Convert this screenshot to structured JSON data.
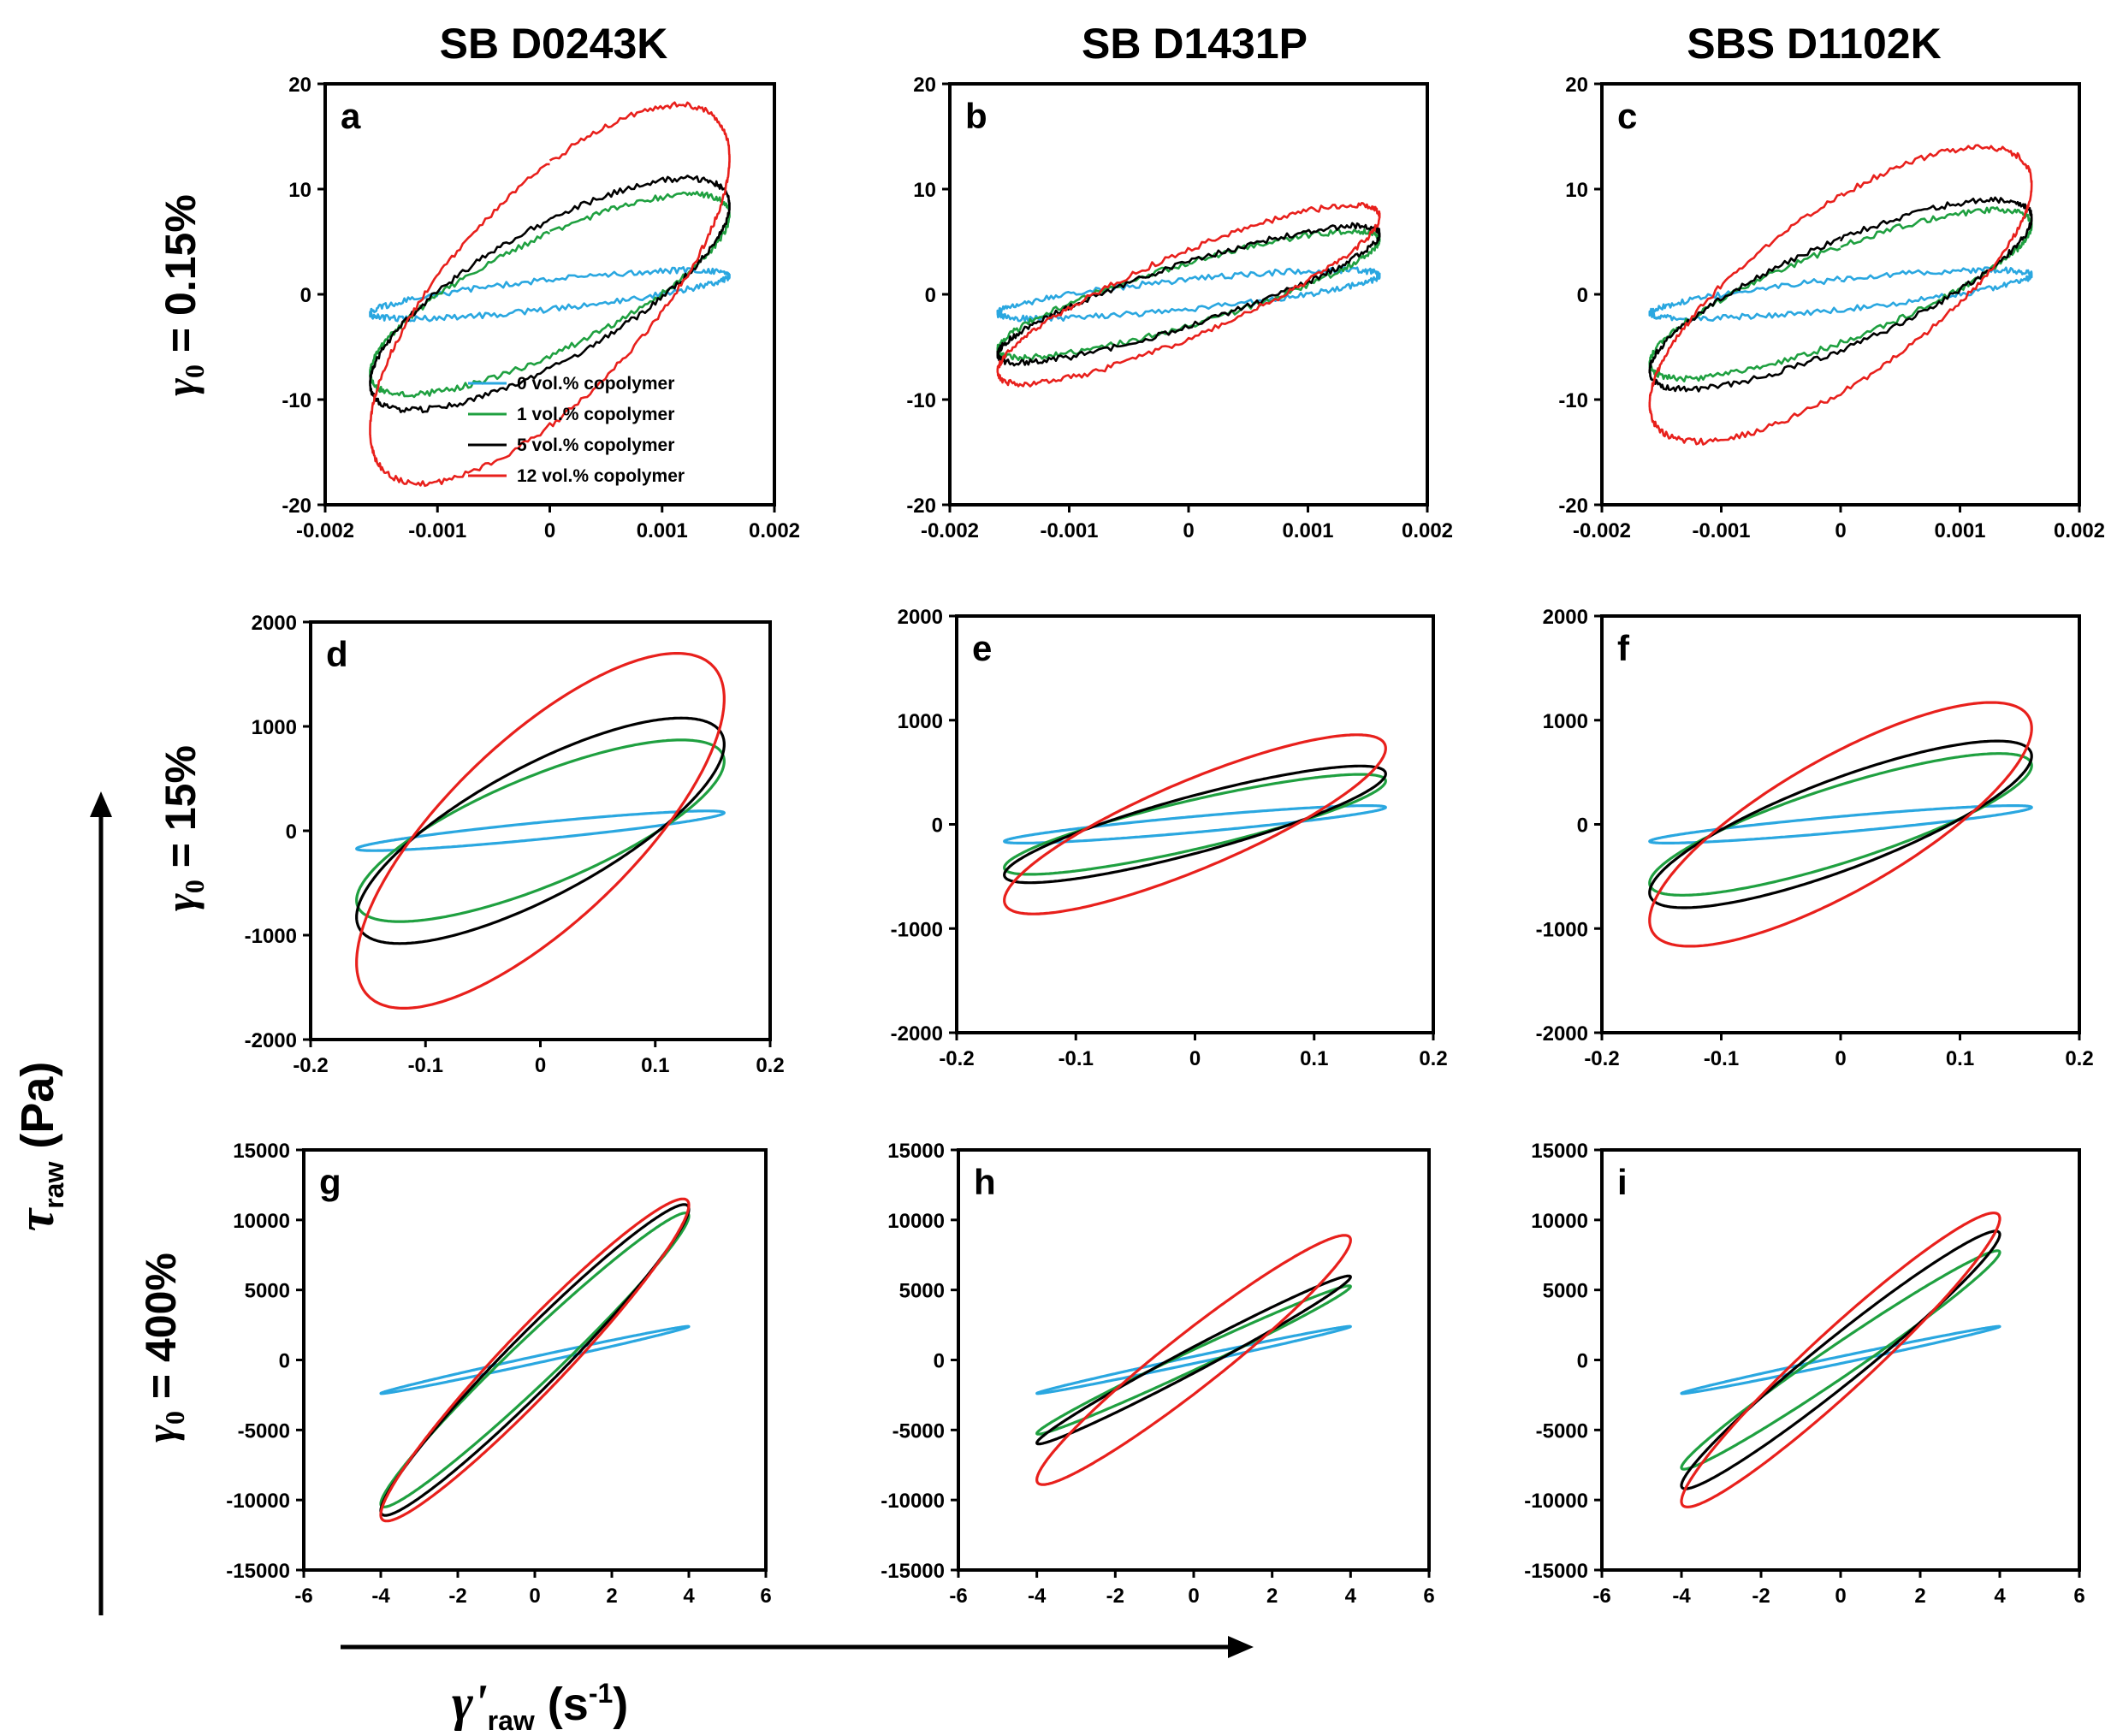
{
  "column_titles": [
    "SB D0243K",
    "SB D1431P",
    "SBS D1102K"
  ],
  "row_labels": [
    {
      "symbol": "γ",
      "sub": "0",
      "rest": " = 0.15%"
    },
    {
      "symbol": "γ",
      "sub": "0",
      "rest": " = 15%"
    },
    {
      "symbol": "γ",
      "sub": "0",
      "rest": " = 400%"
    }
  ],
  "y_axis_label": {
    "symbol": "τ",
    "sub": "raw",
    "rest": " (Pa)"
  },
  "x_axis_label": {
    "symbol": "γ'",
    "sub": "raw",
    "rest": " (s",
    "sup": "-1",
    "close": ")"
  },
  "legend": [
    {
      "label": "0 vol.% copolymer",
      "color": "#2aa7e0"
    },
    {
      "label": "1 vol.% copolymer",
      "color": "#1fa040"
    },
    {
      "label": "5 vol.% copolymer",
      "color": "#000000"
    },
    {
      "label": "12 vol.% copolymer",
      "color": "#e8201c"
    }
  ],
  "chart_data": [
    {
      "panel": "a",
      "type": "line",
      "column": "SB D0243K",
      "row": "γ0 = 0.15%",
      "xlim": [
        -0.002,
        0.002
      ],
      "ylim": [
        -20,
        20
      ],
      "xticks": [
        "-0.002",
        "-0.001",
        "0",
        "0.001",
        "0.002"
      ],
      "yticks": [
        "-20",
        "-10",
        "0",
        "10",
        "20"
      ],
      "series": [
        {
          "name": "0 vol.% copolymer",
          "x_amp": 0.0016,
          "y_amp": 2.3,
          "phase_deg": 38
        },
        {
          "name": "1 vol.% copolymer",
          "x_amp": 0.0016,
          "y_amp": 9.5,
          "phase_deg": 38
        },
        {
          "name": "5 vol.% copolymer",
          "x_amp": 0.0016,
          "y_amp": 11,
          "phase_deg": 40
        },
        {
          "name": "12 vol.% copolymer",
          "x_amp": 0.0016,
          "y_amp": 18,
          "phase_deg": 44
        }
      ]
    },
    {
      "panel": "b",
      "type": "line",
      "column": "SB D1431P",
      "row": "γ0 = 0.15%",
      "xlim": [
        -0.002,
        0.002
      ],
      "ylim": [
        -20,
        20
      ],
      "xticks": [
        "-0.002",
        "-0.001",
        "0",
        "0.001",
        "0.002"
      ],
      "yticks": [
        "-20",
        "-10",
        "0",
        "10",
        "20"
      ],
      "series": [
        {
          "name": "0 vol.% copolymer",
          "x_amp": 0.0016,
          "y_amp": 2.3,
          "phase_deg": 38
        },
        {
          "name": "1 vol.% copolymer",
          "x_amp": 0.0016,
          "y_amp": 6,
          "phase_deg": 30
        },
        {
          "name": "5 vol.% copolymer",
          "x_amp": 0.0016,
          "y_amp": 6.5,
          "phase_deg": 28
        },
        {
          "name": "12 vol.% copolymer",
          "x_amp": 0.0016,
          "y_amp": 8.5,
          "phase_deg": 30
        }
      ]
    },
    {
      "panel": "c",
      "type": "line",
      "column": "SBS D1102K",
      "row": "γ0 = 0.15%",
      "xlim": [
        -0.002,
        0.002
      ],
      "ylim": [
        -20,
        20
      ],
      "xticks": [
        "-0.002",
        "-0.001",
        "0",
        "0.001",
        "0.002"
      ],
      "yticks": [
        "-20",
        "-10",
        "0",
        "10",
        "20"
      ],
      "series": [
        {
          "name": "0 vol.% copolymer",
          "x_amp": 0.0016,
          "y_amp": 2.3,
          "phase_deg": 38
        },
        {
          "name": "1 vol.% copolymer",
          "x_amp": 0.0016,
          "y_amp": 8,
          "phase_deg": 35
        },
        {
          "name": "5 vol.% copolymer",
          "x_amp": 0.0016,
          "y_amp": 9,
          "phase_deg": 36
        },
        {
          "name": "12 vol.% copolymer",
          "x_amp": 0.0016,
          "y_amp": 14,
          "phase_deg": 42
        }
      ]
    },
    {
      "panel": "d",
      "type": "line",
      "column": "SB D0243K",
      "row": "γ0 = 15%",
      "xlim": [
        -0.2,
        0.2
      ],
      "ylim": [
        -2000,
        2000
      ],
      "xticks": [
        "-0.2",
        "-0.1",
        "0",
        "0.1",
        "0.2"
      ],
      "yticks": [
        "-2000",
        "-1000",
        "0",
        "1000",
        "2000"
      ],
      "series": [
        {
          "name": "0 vol.% copolymer",
          "x_amp": 0.16,
          "y_amp": 190,
          "phase_deg": 25
        },
        {
          "name": "1 vol.% copolymer",
          "x_amp": 0.16,
          "y_amp": 870,
          "phase_deg": 40
        },
        {
          "name": "5 vol.% copolymer",
          "x_amp": 0.16,
          "y_amp": 1080,
          "phase_deg": 40
        },
        {
          "name": "12 vol.% copolymer",
          "x_amp": 0.16,
          "y_amp": 1700,
          "phase_deg": 42
        }
      ]
    },
    {
      "panel": "e",
      "type": "line",
      "column": "SB D1431P",
      "row": "γ0 = 15%",
      "xlim": [
        -0.2,
        0.2
      ],
      "ylim": [
        -2000,
        2000
      ],
      "xticks": [
        "-0.2",
        "-0.1",
        "0",
        "0.1",
        "0.2"
      ],
      "yticks": [
        "-2000",
        "-1000",
        "0",
        "1000",
        "2000"
      ],
      "series": [
        {
          "name": "0 vol.% copolymer",
          "x_amp": 0.16,
          "y_amp": 180,
          "phase_deg": 25
        },
        {
          "name": "1 vol.% copolymer",
          "x_amp": 0.16,
          "y_amp": 480,
          "phase_deg": 30
        },
        {
          "name": "5 vol.% copolymer",
          "x_amp": 0.16,
          "y_amp": 560,
          "phase_deg": 30
        },
        {
          "name": "12 vol.% copolymer",
          "x_amp": 0.16,
          "y_amp": 860,
          "phase_deg": 32
        }
      ]
    },
    {
      "panel": "f",
      "type": "line",
      "column": "SBS D1102K",
      "row": "γ0 = 15%",
      "xlim": [
        -0.2,
        0.2
      ],
      "ylim": [
        -2000,
        2000
      ],
      "xticks": [
        "-0.2",
        "-0.1",
        "0",
        "0.1",
        "0.2"
      ],
      "yticks": [
        "-2000",
        "-1000",
        "0",
        "1000",
        "2000"
      ],
      "series": [
        {
          "name": "0 vol.% copolymer",
          "x_amp": 0.16,
          "y_amp": 180,
          "phase_deg": 25
        },
        {
          "name": "1 vol.% copolymer",
          "x_amp": 0.16,
          "y_amp": 680,
          "phase_deg": 34
        },
        {
          "name": "5 vol.% copolymer",
          "x_amp": 0.16,
          "y_amp": 800,
          "phase_deg": 35
        },
        {
          "name": "12 vol.% copolymer",
          "x_amp": 0.16,
          "y_amp": 1170,
          "phase_deg": 38
        }
      ]
    },
    {
      "panel": "g",
      "type": "line",
      "column": "SB D0243K",
      "row": "γ0 = 400%",
      "xlim": [
        -6,
        6
      ],
      "ylim": [
        -15000,
        15000
      ],
      "xticks": [
        "-6",
        "-4",
        "-2",
        "0",
        "2",
        "4",
        "6"
      ],
      "yticks": [
        "-15000",
        "-10000",
        "-5000",
        "0",
        "5000",
        "10000",
        "15000"
      ],
      "series": [
        {
          "name": "0 vol.% copolymer",
          "x_amp": 4,
          "y_amp": 2400,
          "phase_deg": 6
        },
        {
          "name": "1 vol.% copolymer",
          "x_amp": 4,
          "y_amp": 10500,
          "phase_deg": 12
        },
        {
          "name": "5 vol.% copolymer",
          "x_amp": 4,
          "y_amp": 11100,
          "phase_deg": 14
        },
        {
          "name": "12 vol.% copolymer",
          "x_amp": 4,
          "y_amp": 11500,
          "phase_deg": 16
        }
      ]
    },
    {
      "panel": "h",
      "type": "line",
      "column": "SB D1431P",
      "row": "γ0 = 400%",
      "xlim": [
        -6,
        6
      ],
      "ylim": [
        -15000,
        15000
      ],
      "xticks": [
        "-6",
        "-4",
        "-2",
        "0",
        "2",
        "4",
        "6"
      ],
      "yticks": [
        "-15000",
        "-10000",
        "-5000",
        "0",
        "5000",
        "10000",
        "15000"
      ],
      "series": [
        {
          "name": "0 vol.% copolymer",
          "x_amp": 4,
          "y_amp": 2400,
          "phase_deg": 6
        },
        {
          "name": "1 vol.% copolymer",
          "x_amp": 4,
          "y_amp": 5300,
          "phase_deg": 8
        },
        {
          "name": "5 vol.% copolymer",
          "x_amp": 4,
          "y_amp": 6000,
          "phase_deg": 9
        },
        {
          "name": "12 vol.% copolymer",
          "x_amp": 4,
          "y_amp": 8900,
          "phase_deg": 16
        }
      ]
    },
    {
      "panel": "i",
      "type": "line",
      "column": "SBS D1102K",
      "row": "γ0 = 400%",
      "xlim": [
        -6,
        6
      ],
      "ylim": [
        -15000,
        15000
      ],
      "xticks": [
        "-6",
        "-4",
        "-2",
        "0",
        "2",
        "4",
        "6"
      ],
      "yticks": [
        "-15000",
        "-10000",
        "-5000",
        "0",
        "5000",
        "10000",
        "15000"
      ],
      "series": [
        {
          "name": "0 vol.% copolymer",
          "x_amp": 4,
          "y_amp": 2400,
          "phase_deg": 6
        },
        {
          "name": "1 vol.% copolymer",
          "x_amp": 4,
          "y_amp": 7800,
          "phase_deg": 10
        },
        {
          "name": "5 vol.% copolymer",
          "x_amp": 4,
          "y_amp": 9200,
          "phase_deg": 13
        },
        {
          "name": "12 vol.% copolymer",
          "x_amp": 4,
          "y_amp": 10500,
          "phase_deg": 16
        }
      ]
    }
  ]
}
